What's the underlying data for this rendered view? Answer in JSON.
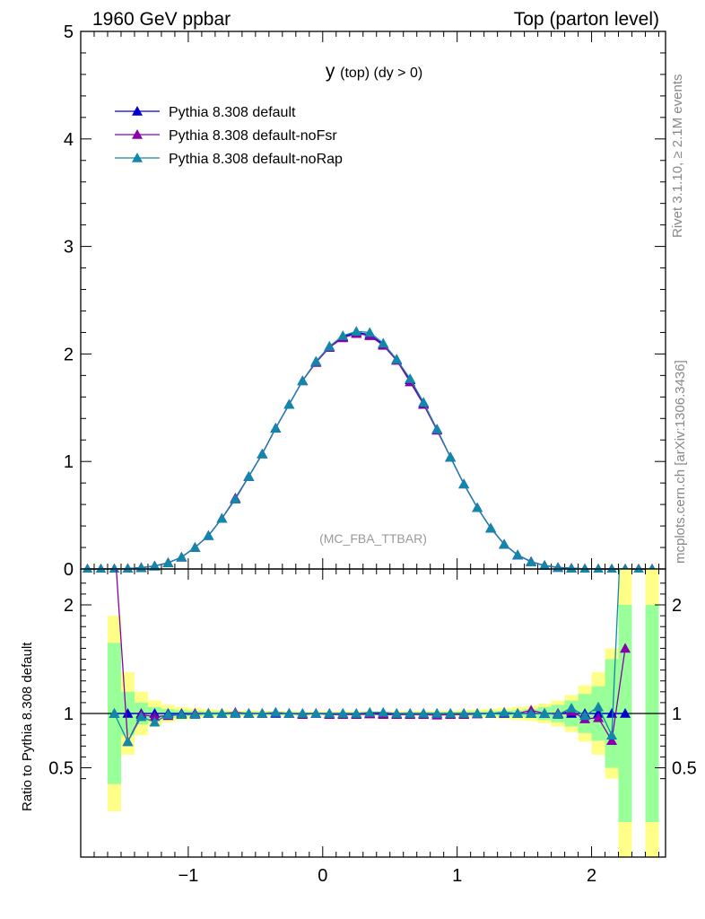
{
  "header": {
    "left": "1960 GeV ppbar",
    "right": "Top (parton level)"
  },
  "side_labels": {
    "rivet": "Rivet 3.1.10, ≥ 2.1M events",
    "mcplots": "mcplots.cern.ch [arXiv:1306.3436]"
  },
  "chart_data": [
    {
      "type": "line",
      "title_main": "y",
      "title_sub": "(top) (dy > 0)",
      "watermark": "(MC_FBA_TTBAR)",
      "xlim": [
        -1.8,
        2.55
      ],
      "ylim": [
        0,
        5
      ],
      "yticks": [
        0,
        1,
        2,
        3,
        4,
        5
      ],
      "xticks": [
        -1,
        0,
        1,
        2
      ],
      "legend_position": "top-left",
      "x": [
        -1.75,
        -1.65,
        -1.55,
        -1.45,
        -1.35,
        -1.25,
        -1.15,
        -1.05,
        -0.95,
        -0.85,
        -0.75,
        -0.65,
        -0.55,
        -0.45,
        -0.35,
        -0.25,
        -0.15,
        -0.05,
        0.05,
        0.15,
        0.25,
        0.35,
        0.45,
        0.55,
        0.65,
        0.75,
        0.85,
        0.95,
        1.05,
        1.15,
        1.25,
        1.35,
        1.45,
        1.55,
        1.65,
        1.75,
        1.85,
        1.95,
        2.05,
        2.15,
        2.25,
        2.35,
        2.45
      ],
      "series": [
        {
          "name": "Pythia 8.308 default",
          "color": "#0000cc",
          "values": [
            0.0,
            0.0,
            0.001,
            0.004,
            0.012,
            0.028,
            0.058,
            0.11,
            0.2,
            0.31,
            0.47,
            0.65,
            0.86,
            1.07,
            1.31,
            1.53,
            1.75,
            1.93,
            2.07,
            2.16,
            2.2,
            2.18,
            2.09,
            1.95,
            1.76,
            1.54,
            1.3,
            1.04,
            0.79,
            0.57,
            0.38,
            0.23,
            0.13,
            0.067,
            0.032,
            0.014,
            0.006,
            0.002,
            0.0007,
            0.0002,
            0.0001,
            0.0,
            0.0
          ]
        },
        {
          "name": "Pythia 8.308 default-noFsr",
          "color": "#8800aa",
          "values": [
            0.0,
            0.0,
            0.002,
            0.003,
            0.012,
            0.027,
            0.057,
            0.11,
            0.2,
            0.31,
            0.47,
            0.66,
            0.86,
            1.07,
            1.31,
            1.53,
            1.75,
            1.92,
            2.06,
            2.15,
            2.19,
            2.17,
            2.08,
            1.94,
            1.74,
            1.53,
            1.29,
            1.04,
            0.79,
            0.57,
            0.38,
            0.23,
            0.13,
            0.069,
            0.032,
            0.014,
            0.006,
            0.002,
            0.0007,
            0.0001,
            0.0002,
            0.0,
            0.0
          ]
        },
        {
          "name": "Pythia 8.308 default-noRap",
          "color": "#1188aa",
          "values": [
            0.0,
            0.0,
            0.001,
            0.003,
            0.012,
            0.026,
            0.057,
            0.11,
            0.2,
            0.31,
            0.47,
            0.65,
            0.86,
            1.07,
            1.31,
            1.53,
            1.75,
            1.93,
            2.07,
            2.17,
            2.21,
            2.2,
            2.1,
            1.95,
            1.77,
            1.55,
            1.3,
            1.04,
            0.79,
            0.57,
            0.38,
            0.23,
            0.13,
            0.066,
            0.032,
            0.014,
            0.006,
            0.002,
            0.0007,
            0.0002,
            0.0003,
            0.0,
            0.0
          ]
        }
      ]
    },
    {
      "type": "line",
      "ylabel": "Ratio to Pythia 8.308 default",
      "xlim": [
        -1.8,
        2.55
      ],
      "ylim": [
        0.34,
        2.25
      ],
      "yticks": [
        0.5,
        1,
        2
      ],
      "ytick_labels": [
        "0.5",
        "1",
        "2"
      ],
      "xticks": [
        -1,
        0,
        1,
        2
      ],
      "xtick_labels": [
        "−1",
        "0",
        "1",
        "2"
      ],
      "reference_line": 1,
      "uncertainty_bands": {
        "x": [
          -1.55,
          -1.45,
          -1.35,
          -1.25,
          -1.15,
          -1.05,
          -0.95,
          -0.85,
          -0.75,
          -0.65,
          -0.55,
          -0.45,
          -0.35,
          -0.25,
          -0.15,
          -0.05,
          0.05,
          0.15,
          0.25,
          0.35,
          0.45,
          0.55,
          0.65,
          0.75,
          0.85,
          0.95,
          1.05,
          1.15,
          1.25,
          1.35,
          1.45,
          1.55,
          1.65,
          1.75,
          1.85,
          1.95,
          2.05,
          2.15,
          2.25,
          2.45
        ],
        "green_halfwidth": [
          0.65,
          0.2,
          0.1,
          0.06,
          0.04,
          0.03,
          0.025,
          0.02,
          0.02,
          0.015,
          0.015,
          0.012,
          0.012,
          0.012,
          0.01,
          0.01,
          0.01,
          0.01,
          0.01,
          0.01,
          0.01,
          0.01,
          0.012,
          0.012,
          0.012,
          0.015,
          0.015,
          0.02,
          0.02,
          0.025,
          0.03,
          0.04,
          0.06,
          0.08,
          0.12,
          0.18,
          0.25,
          0.5,
          1.0,
          1.0
        ],
        "yellow_halfwidth": [
          0.9,
          0.38,
          0.2,
          0.12,
          0.08,
          0.06,
          0.05,
          0.04,
          0.035,
          0.03,
          0.028,
          0.025,
          0.023,
          0.022,
          0.02,
          0.02,
          0.02,
          0.02,
          0.02,
          0.02,
          0.02,
          0.021,
          0.022,
          0.024,
          0.026,
          0.028,
          0.032,
          0.037,
          0.043,
          0.05,
          0.06,
          0.07,
          0.09,
          0.12,
          0.17,
          0.26,
          0.38,
          0.6,
          1.4,
          1.4
        ],
        "green_color": "#99ff99",
        "yellow_color": "#ffff88"
      },
      "series": [
        {
          "name": "Pythia 8.308 default",
          "color": "#0000cc",
          "values": [
            1.0,
            1.0,
            1.0,
            1.0,
            1.0,
            1.0,
            1.0,
            1.0,
            1.0,
            1.0,
            1.0,
            1.0,
            1.0,
            1.0,
            1.0,
            1.0,
            1.0,
            1.0,
            1.0,
            1.0,
            1.0,
            1.0,
            1.0,
            1.0,
            1.0,
            1.0,
            1.0,
            1.0,
            1.0,
            1.0,
            1.0,
            1.0,
            1.0,
            1.0,
            1.0,
            1.0,
            1.0,
            1.0,
            1.0
          ]
        },
        {
          "name": "Pythia 8.308 default-noFsr",
          "color": "#8800aa",
          "values": [
            2.6,
            0.74,
            0.99,
            0.97,
            0.98,
            0.99,
            1.0,
            1.0,
            1.0,
            1.01,
            1.0,
            1.0,
            1.01,
            1.0,
            0.99,
            1.0,
            0.99,
            0.99,
            0.99,
            0.995,
            0.99,
            0.99,
            0.99,
            0.99,
            0.985,
            0.99,
            0.99,
            0.995,
            1.0,
            1.01,
            1.0,
            1.03,
            1.0,
            1.0,
            1.02,
            0.95,
            0.96,
            0.75,
            1.6
          ]
        },
        {
          "name": "Pythia 8.308 default-noRap",
          "color": "#1188aa",
          "values": [
            1.0,
            0.74,
            0.97,
            0.92,
            0.99,
            0.99,
            0.99,
            1.0,
            1.0,
            1.0,
            1.0,
            1.0,
            1.01,
            1.0,
            1.0,
            1.0,
            1.0,
            1.0,
            1.0,
            1.01,
            1.01,
            1.0,
            1.0,
            1.0,
            1.0,
            1.0,
            1.0,
            1.0,
            1.0,
            1.01,
            1.0,
            1.0,
            1.0,
            0.99,
            1.05,
            0.98,
            1.06,
            0.8,
            3.5
          ]
        }
      ],
      "ratio_x": [
        -1.55,
        -1.45,
        -1.35,
        -1.25,
        -1.15,
        -1.05,
        -0.95,
        -0.85,
        -0.75,
        -0.65,
        -0.55,
        -0.45,
        -0.35,
        -0.25,
        -0.15,
        -0.05,
        0.05,
        0.15,
        0.25,
        0.35,
        0.45,
        0.55,
        0.65,
        0.75,
        0.85,
        0.95,
        1.05,
        1.15,
        1.25,
        1.35,
        1.45,
        1.55,
        1.65,
        1.75,
        1.85,
        1.95,
        2.05,
        2.15,
        2.25
      ]
    }
  ]
}
